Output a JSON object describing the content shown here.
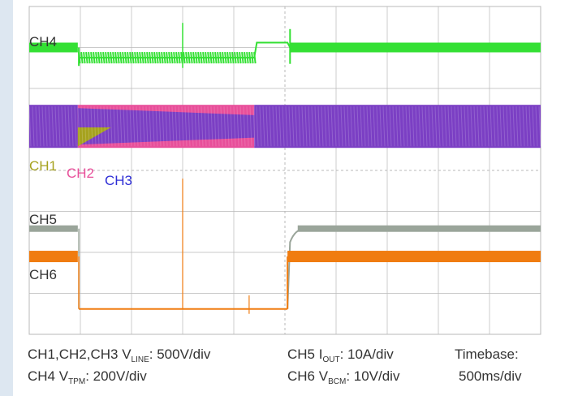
{
  "scope": {
    "channel_labels": {
      "ch4": "CH4",
      "ch1": "CH1",
      "ch2": "CH2",
      "ch3": "CH3",
      "ch5": "CH5",
      "ch6": "CH6"
    },
    "captions": {
      "line1_left_prefix": "CH1,CH2,CH3 V",
      "line1_left_sub": "LINE",
      "line1_left_suffix": ": 500V/div",
      "line1_mid_prefix": "CH5 I",
      "line1_mid_sub": "OUT",
      "line1_mid_suffix": ": 10A/div",
      "line1_right": "Timebase:",
      "line2_left_prefix": "CH4 V",
      "line2_left_sub": "TPM",
      "line2_left_suffix": ": 200V/div",
      "line2_mid_prefix": "CH6 V",
      "line2_mid_sub": "BCM",
      "line2_mid_suffix": ": 10V/div",
      "line2_right": "500ms/div"
    },
    "colors": {
      "ch1": "#a6a21e",
      "ch2": "#e84f9a",
      "ch3": "#2f2fd6",
      "ch4": "#34e034",
      "ch5": "#9aa59a",
      "ch6": "#f07c10",
      "trace_violet": "#7b3fc4",
      "grid": "#b8b8b8"
    }
  },
  "chart_data": {
    "type": "line",
    "x_unit": "divisions (500ms/div)",
    "x_range": [
      0,
      10
    ],
    "y_range": [
      0,
      8
    ],
    "grid": true,
    "series": [
      {
        "name": "CH4",
        "points": [
          [
            0,
            7.0
          ],
          [
            0.95,
            7.0
          ],
          [
            0.97,
            6.7
          ],
          [
            4.4,
            6.75
          ],
          [
            4.45,
            7.12
          ],
          [
            5.05,
            7.12
          ],
          [
            5.1,
            7.0
          ],
          [
            10,
            7.0
          ]
        ]
      },
      {
        "name": "CH5",
        "points": [
          [
            0,
            2.58
          ],
          [
            0.95,
            2.58
          ],
          [
            0.97,
            0.62
          ],
          [
            5.05,
            0.62
          ],
          [
            5.1,
            2.3
          ],
          [
            5.3,
            2.58
          ],
          [
            10,
            2.58
          ]
        ]
      },
      {
        "name": "CH6",
        "points": [
          [
            0,
            1.9
          ],
          [
            0.95,
            1.9
          ],
          [
            0.97,
            0.62
          ],
          [
            5.05,
            0.62
          ],
          [
            5.1,
            1.9
          ],
          [
            10,
            1.9
          ]
        ]
      }
    ]
  }
}
